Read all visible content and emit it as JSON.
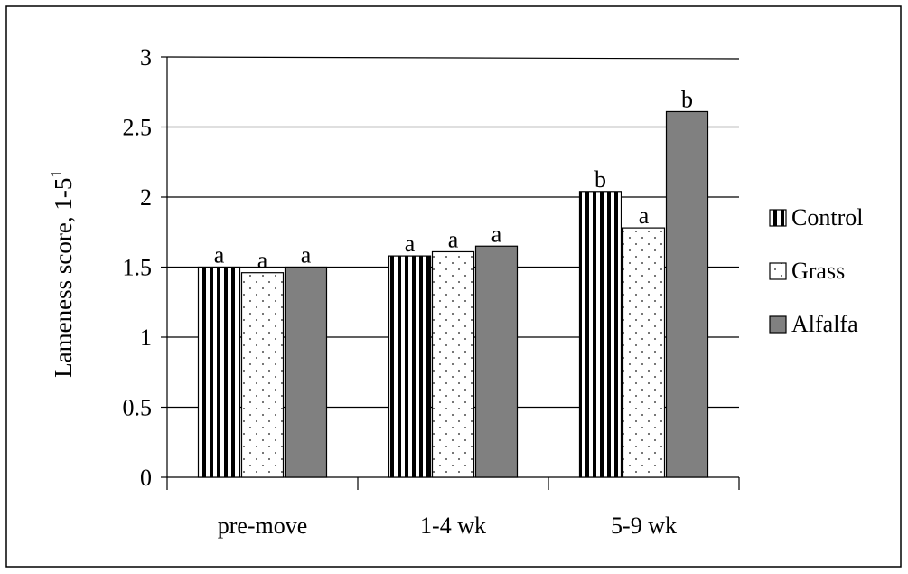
{
  "chart_data": {
    "type": "bar",
    "categories": [
      "pre-move",
      "1-4 wk",
      "5-9 wk"
    ],
    "ylabel": "Lameness score, 1-5",
    "ylabel_superscript": "1",
    "ylim": [
      0,
      3
    ],
    "yticks": [
      "0",
      "0.5",
      "1",
      "1.5",
      "2",
      "2.5",
      "3"
    ],
    "grid": true,
    "legend_position": "right",
    "series": [
      {
        "name": "Control",
        "values": [
          1.5,
          1.58,
          2.04
        ],
        "labels": [
          "a",
          "a",
          "b"
        ],
        "pattern": "vertical-stripes"
      },
      {
        "name": "Grass",
        "values": [
          1.46,
          1.61,
          1.78
        ],
        "labels": [
          "a",
          "a",
          "a"
        ],
        "pattern": "dots"
      },
      {
        "name": "Alfalfa",
        "values": [
          1.5,
          1.65,
          2.61
        ],
        "labels": [
          "a",
          "a",
          "b"
        ],
        "pattern": "solid-gray"
      }
    ],
    "colors": {
      "stripe": "#000000",
      "dot": "#777777",
      "gray": "#808080",
      "grid": "#000000"
    }
  }
}
